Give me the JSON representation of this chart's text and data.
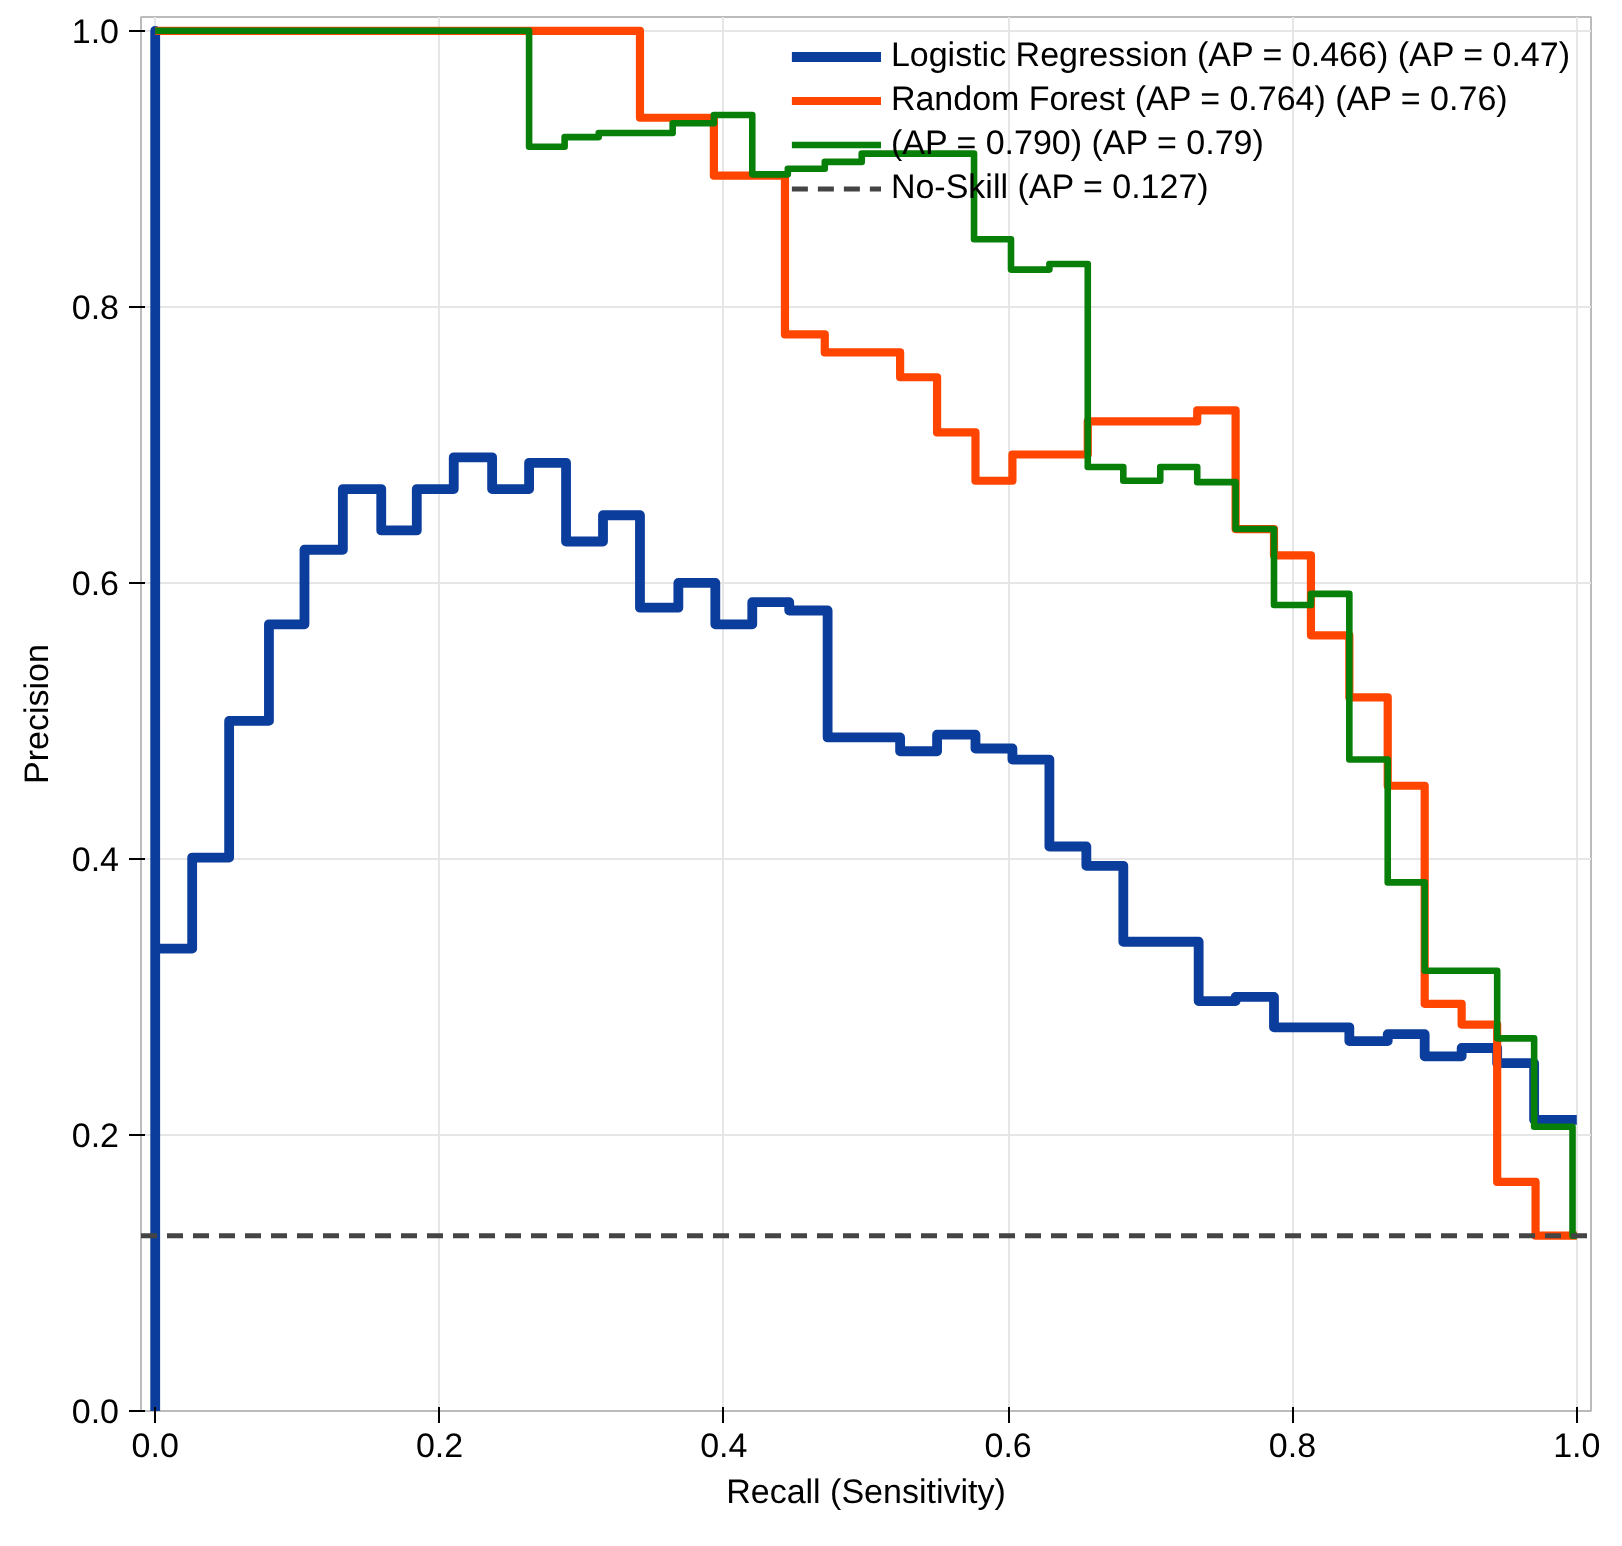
{
  "chart_data": {
    "type": "step",
    "xlabel": "Recall (Sensitivity)",
    "ylabel": "Precision",
    "xlim": [
      -0.01,
      1.01
    ],
    "ylim": [
      0,
      1.01
    ],
    "xticks": [
      {
        "value": 0,
        "label": "0.0"
      },
      0.2,
      0.4,
      0.6,
      0.8,
      {
        "value": 1,
        "label": "1.0"
      }
    ],
    "yticks": [
      {
        "value": 0,
        "label": "0.0"
      },
      0.2,
      0.4,
      0.6,
      0.8,
      {
        "value": 1,
        "label": "1.0"
      }
    ],
    "grid": true,
    "legend": "top right",
    "line_style": "solid",
    "marker": "none",
    "series": [
      {
        "name": "Logistic Regression (AP = 0.466) (AP = 0.47)",
        "color": "#0b3d9c",
        "x": [
          0,
          0,
          0,
          0.026,
          0.052,
          0.08,
          0.105,
          0.132,
          0.159,
          0.184,
          0.21,
          0.237,
          0.263,
          0.289,
          0.315,
          0.341,
          0.368,
          0.394,
          0.42,
          0.446,
          0.473,
          0.524,
          0.55,
          0.577,
          0.603,
          0.629,
          0.655,
          0.681,
          0.734,
          0.76,
          0.787,
          0.84,
          0.867,
          0.893,
          0.919,
          0.944,
          0.97,
          1.0
        ],
        "values": [
          0,
          1.0,
          0.335,
          0.401,
          0.5,
          0.57,
          0.624,
          0.668,
          0.638,
          0.668,
          0.691,
          0.668,
          0.687,
          0.63,
          0.649,
          0.582,
          0.6,
          0.57,
          0.586,
          0.58,
          0.488,
          0.478,
          0.49,
          0.48,
          0.472,
          0.409,
          0.395,
          0.34,
          0.297,
          0.3,
          0.278,
          0.268,
          0.273,
          0.257,
          0.263,
          0.252,
          0.211,
          0.211
        ]
      },
      {
        "name": "Random Forest (AP = 0.764) (AP = 0.76)",
        "color": "#ff4500",
        "x": [
          0,
          0.341,
          0.393,
          0.443,
          0.471,
          0.524,
          0.55,
          0.577,
          0.603,
          0.656,
          0.733,
          0.76,
          0.787,
          0.813,
          0.84,
          0.867,
          0.893,
          0.919,
          0.944,
          0.971,
          1.0
        ],
        "values": [
          1.0,
          0.937,
          0.895,
          0.78,
          0.767,
          0.749,
          0.709,
          0.674,
          0.693,
          0.717,
          0.725,
          0.639,
          0.62,
          0.562,
          0.517,
          0.453,
          0.295,
          0.28,
          0.166,
          0.127,
          0.127
        ]
      },
      {
        "name": "(AP = 0.790) (AP = 0.79)",
        "color": "#087f08",
        "x": [
          0,
          0.263,
          0.288,
          0.312,
          0.364,
          0.393,
          0.42,
          0.445,
          0.471,
          0.497,
          0.576,
          0.602,
          0.629,
          0.656,
          0.681,
          0.707,
          0.733,
          0.76,
          0.787,
          0.813,
          0.84,
          0.867,
          0.893,
          0.944,
          0.97,
          0.997,
          1.0
        ],
        "values": [
          1.0,
          0.916,
          0.923,
          0.926,
          0.933,
          0.939,
          0.896,
          0.9,
          0.905,
          0.911,
          0.849,
          0.827,
          0.831,
          0.684,
          0.674,
          0.684,
          0.673,
          0.639,
          0.584,
          0.592,
          0.472,
          0.383,
          0.319,
          0.27,
          0.206,
          0.127,
          0.127
        ]
      },
      {
        "name": "No-Skill (AP = 0.127)",
        "color": "#444444",
        "type": "line",
        "line_style": "dashed",
        "x": [
          -0.01,
          1.01
        ],
        "values": [
          0.127,
          0.127
        ]
      }
    ]
  }
}
